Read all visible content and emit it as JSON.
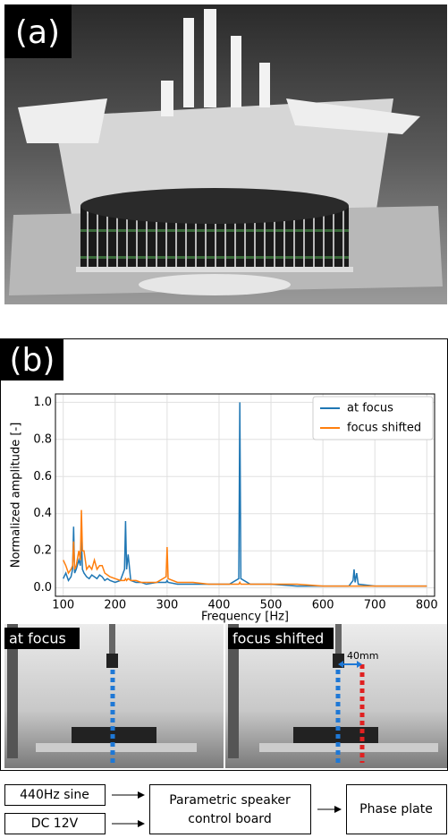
{
  "panels": {
    "a": {
      "label": "(a)"
    },
    "b": {
      "label": "(b)"
    }
  },
  "chart_data": {
    "type": "line",
    "ylabel": "Normalized amplitude [-]",
    "xlabel": "Frequency [Hz]",
    "x": [
      100,
      105,
      110,
      115,
      118,
      120,
      122,
      125,
      130,
      133,
      135,
      137,
      140,
      145,
      150,
      155,
      160,
      165,
      170,
      175,
      180,
      185,
      190,
      200,
      210,
      218,
      220,
      222,
      225,
      230,
      240,
      250,
      260,
      280,
      298,
      300,
      302,
      320,
      350,
      380,
      400,
      420,
      438,
      440,
      442,
      460,
      500,
      550,
      600,
      650,
      658,
      660,
      662,
      665,
      668,
      700,
      750,
      800
    ],
    "series": [
      {
        "name": "at focus",
        "color": "#1f77b4",
        "values": [
          0.05,
          0.08,
          0.04,
          0.06,
          0.1,
          0.33,
          0.08,
          0.1,
          0.15,
          0.12,
          0.27,
          0.1,
          0.08,
          0.06,
          0.05,
          0.07,
          0.06,
          0.05,
          0.07,
          0.06,
          0.04,
          0.05,
          0.04,
          0.03,
          0.04,
          0.1,
          0.36,
          0.1,
          0.18,
          0.04,
          0.03,
          0.03,
          0.02,
          0.03,
          0.03,
          0.04,
          0.03,
          0.02,
          0.02,
          0.02,
          0.02,
          0.02,
          0.05,
          1.0,
          0.05,
          0.02,
          0.02,
          0.01,
          0.01,
          0.01,
          0.04,
          0.1,
          0.03,
          0.08,
          0.02,
          0.01,
          0.01,
          0.01
        ]
      },
      {
        "name": "focus shifted",
        "color": "#ff7f0e",
        "values": [
          0.15,
          0.12,
          0.08,
          0.1,
          0.12,
          0.25,
          0.1,
          0.12,
          0.2,
          0.15,
          0.42,
          0.2,
          0.2,
          0.1,
          0.12,
          0.1,
          0.15,
          0.1,
          0.12,
          0.12,
          0.08,
          0.07,
          0.06,
          0.05,
          0.04,
          0.04,
          0.05,
          0.04,
          0.05,
          0.04,
          0.04,
          0.03,
          0.03,
          0.03,
          0.06,
          0.22,
          0.05,
          0.03,
          0.03,
          0.02,
          0.02,
          0.02,
          0.02,
          0.03,
          0.02,
          0.02,
          0.02,
          0.02,
          0.01,
          0.01,
          0.01,
          0.01,
          0.01,
          0.01,
          0.01,
          0.01,
          0.01,
          0.01
        ]
      }
    ],
    "xlim": [
      85,
      815
    ],
    "ylim": [
      -0.045,
      1.045
    ],
    "xticks": [
      100,
      200,
      300,
      400,
      500,
      600,
      700,
      800
    ],
    "yticks": [
      {
        "value": 0,
        "label": "0.0"
      },
      0.2,
      0.4,
      0.6,
      0.8,
      {
        "value": 1,
        "label": "1.0"
      }
    ],
    "grid": true,
    "legend": "upper right"
  },
  "photos": {
    "left_label": "at focus",
    "right_label": "focus shifted",
    "offset_label": "40mm"
  },
  "diagram": {
    "inputs": [
      "440Hz sine",
      "DC 12V"
    ],
    "board": [
      "Parametric speaker",
      "control board"
    ],
    "output": "Phase plate"
  }
}
